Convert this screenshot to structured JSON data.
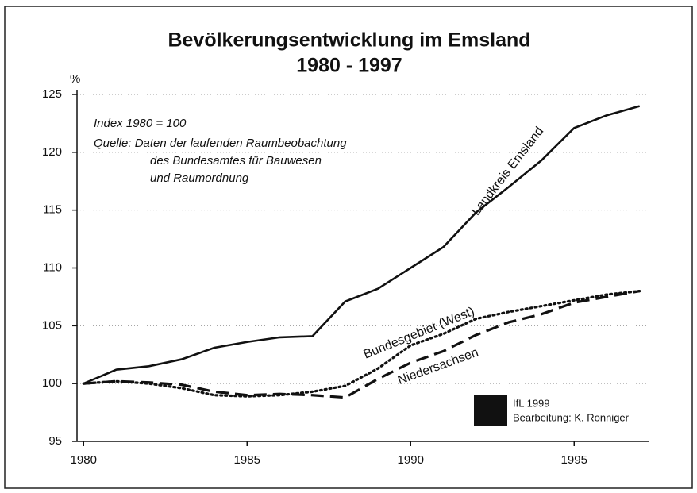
{
  "chart_data": {
    "type": "line",
    "title": "Bevölkerungsentwicklung im Emsland",
    "subtitle": "1980 - 1997",
    "y_label": "%",
    "annotations": [
      "Index 1980 = 100",
      "Quelle: Daten der laufenden Raumbeobachtung",
      "des Bundesamtes für Bauwesen",
      "und Raumordnung"
    ],
    "credits": [
      "IfL 1999",
      "Bearbeitung: K. Ronniger"
    ],
    "x": [
      1980,
      1981,
      1982,
      1983,
      1984,
      1985,
      1986,
      1987,
      1988,
      1989,
      1990,
      1991,
      1992,
      1993,
      1994,
      1995,
      1996,
      1997
    ],
    "series": [
      {
        "name": "Landkreis Emsland",
        "color": "#111111",
        "style": "solid",
        "values": [
          100,
          101.2,
          101.5,
          102.1,
          103.1,
          103.6,
          104,
          104.1,
          107.1,
          108.2,
          110,
          111.8,
          114.8,
          117,
          119.3,
          122.1,
          123.2,
          124
        ]
      },
      {
        "name": "Bundesgebiet (West)",
        "color": "#111111",
        "style": "dotted",
        "values": [
          100,
          100.2,
          100,
          99.6,
          99,
          98.9,
          99,
          99.3,
          99.8,
          101.3,
          103.3,
          104.3,
          105.6,
          106.2,
          106.7,
          107.2,
          107.7,
          108
        ]
      },
      {
        "name": "Niedersachsen",
        "color": "#111111",
        "style": "dashed",
        "values": [
          100,
          100.2,
          100.1,
          99.9,
          99.3,
          99,
          99.1,
          99,
          98.8,
          100.4,
          101.8,
          102.8,
          104.2,
          105.3,
          106,
          107,
          107.5,
          108
        ]
      }
    ],
    "xlim": [
      1979.8,
      1997.3
    ],
    "xticks": [
      1980,
      1985,
      1990,
      1995
    ],
    "ylim": [
      95,
      125
    ],
    "yticks": [
      95,
      100,
      105,
      110,
      115,
      120,
      125
    ],
    "grid": true
  }
}
